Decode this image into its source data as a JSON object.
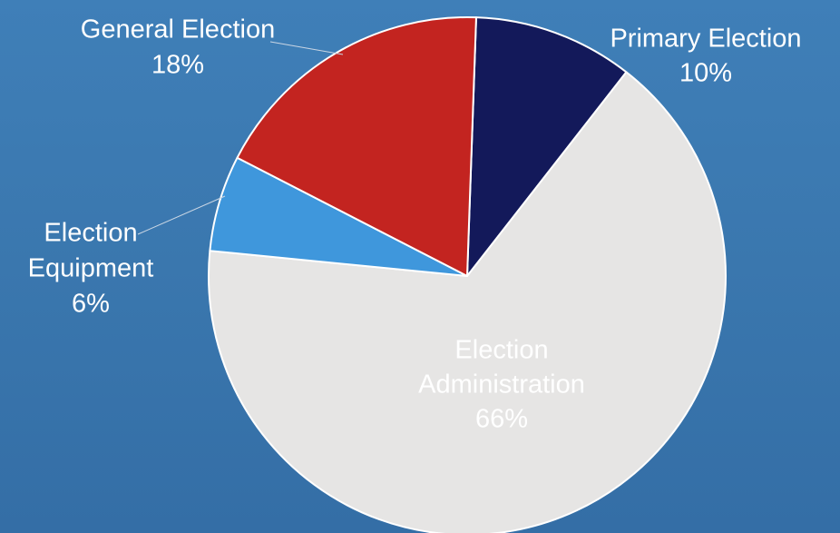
{
  "chart_data": {
    "type": "pie",
    "slices": [
      {
        "label": "Primary Election",
        "value": 10,
        "pct_label": "10%",
        "color": "#13195a",
        "label_color": "#ffffff"
      },
      {
        "label": "Election Administration",
        "value": 66,
        "pct_label": "66%",
        "color": "#e6e5e4",
        "label_color": "#ffffff"
      },
      {
        "label": "Election Equipment",
        "value": 6,
        "pct_label": "6%",
        "color": "#3f97dc",
        "label_color": "#ffffff"
      },
      {
        "label": "General Election",
        "value": 18,
        "pct_label": "18%",
        "color": "#c32420",
        "label_color": "#ffffff"
      }
    ]
  }
}
